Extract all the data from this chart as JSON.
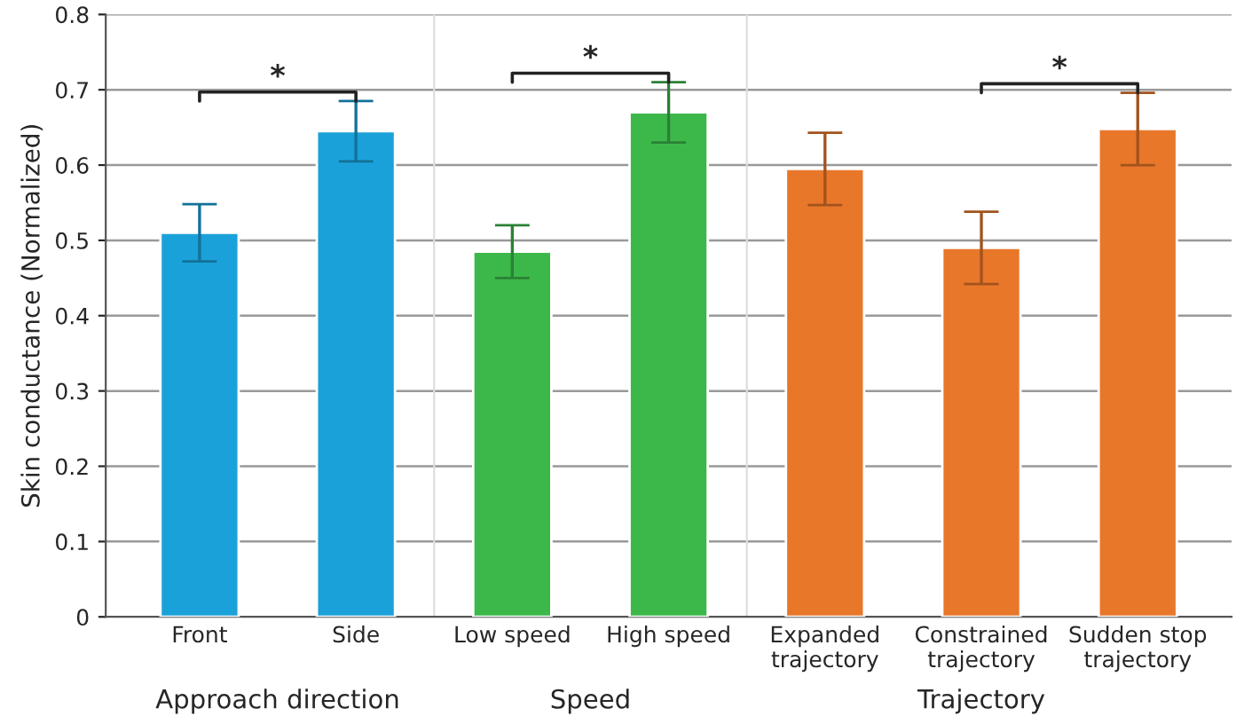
{
  "chart_data": {
    "type": "bar",
    "ylabel": "Skin conductance (Normalized)",
    "categories": [
      "Front",
      "Side",
      "Low speed",
      "High speed",
      "Expanded\ntrajectory",
      "Constrained\ntrajectory",
      "Sudden stop\ntrajectory"
    ],
    "values": [
      0.51,
      0.645,
      0.485,
      0.67,
      0.595,
      0.49,
      0.648
    ],
    "errors": [
      0.038,
      0.04,
      0.035,
      0.04,
      0.048,
      0.048,
      0.048
    ],
    "colors": [
      "#1ba1d9",
      "#1ba1d9",
      "#3cb84a",
      "#3cb84a",
      "#e8772a",
      "#e8772a",
      "#e8772a"
    ],
    "ylim": [
      0,
      0.8
    ],
    "yticks": [
      0,
      0.1,
      0.2,
      0.3,
      0.4,
      0.5,
      0.6,
      0.7,
      0.8
    ],
    "grid": "y",
    "annotations": [
      "Approach direction",
      "Speed",
      "Trajectory",
      "*",
      "*",
      "*"
    ]
  }
}
